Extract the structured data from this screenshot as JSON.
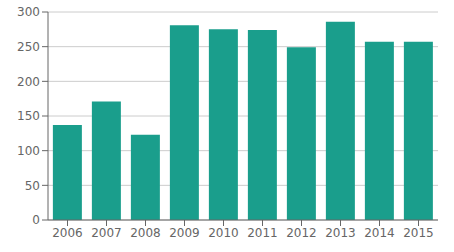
{
  "chart_data": {
    "type": "bar",
    "categories": [
      "2006",
      "2007",
      "2008",
      "2009",
      "2010",
      "2011",
      "2012",
      "2013",
      "2014",
      "2015"
    ],
    "values": [
      137,
      171,
      123,
      281,
      275,
      274,
      249,
      286,
      257,
      257
    ],
    "color": "#1a9e8c",
    "ylim": [
      0,
      300
    ],
    "yticks": [
      0,
      50,
      100,
      150,
      200,
      250,
      300
    ],
    "grid": true
  }
}
